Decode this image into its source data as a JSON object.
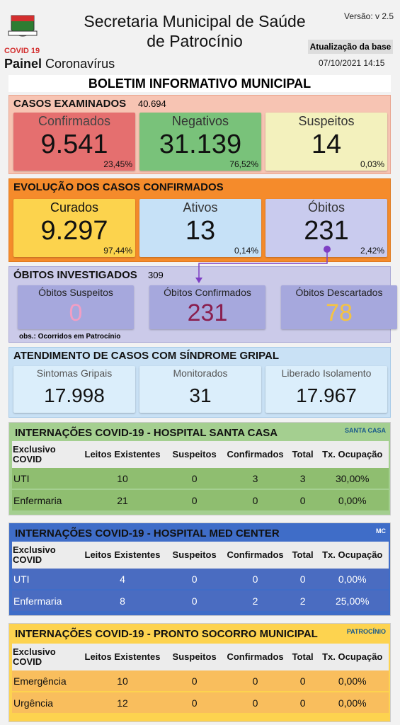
{
  "header": {
    "logo_label": "COVID 19",
    "brand_bold": "Painel",
    "brand": "Coronavírus",
    "title": "Secretaria Municipal de Saúde de Patrocínio",
    "version": "Versão: v 2.5",
    "update_label": "Atualização da base",
    "update_date": "07/10/2021 14:15"
  },
  "banner": "BOLETIM INFORMATIVO MUNICIPAL",
  "sections": [
    {
      "title": "CASOS EXAMINADOS",
      "total": "40.694",
      "cards": [
        {
          "label": "Confirmados",
          "value": "9.541",
          "pct": "23,45%"
        },
        {
          "label": "Negativos",
          "value": "31.139",
          "pct": "76,52%"
        },
        {
          "label": "Suspeitos",
          "value": "14",
          "pct": "0,03%"
        }
      ]
    },
    {
      "title": "EVOLUÇÃO DOS CASOS CONFIRMADOS",
      "cards": [
        {
          "label": "Curados",
          "value": "9.297",
          "pct": "97,44%"
        },
        {
          "label": "Ativos",
          "value": "13",
          "pct": "0,14%"
        },
        {
          "label": "Óbitos",
          "value": "231",
          "pct": "2,42%"
        }
      ]
    },
    {
      "title": "ÓBITOS INVESTIGADOS",
      "total": "309",
      "note": "obs.: Ocorridos em Patrocínio",
      "cards": [
        {
          "label": "Óbitos Suspeitos",
          "value": "0"
        },
        {
          "label": "Óbitos Confirmados",
          "value": "231"
        },
        {
          "label": "Óbitos Descartados",
          "value": "78"
        }
      ]
    },
    {
      "title": "ATENDIMENTO DE CASOS COM SÍNDROME GRIPAL",
      "cards": [
        {
          "label": "Sintomas Gripais",
          "value": "17.998"
        },
        {
          "label": "Monitorados",
          "value": "31"
        },
        {
          "label": "Liberado Isolamento",
          "value": "17.967"
        }
      ]
    }
  ],
  "tables": [
    {
      "title": "INTERNAÇÕES COVID-19 - HOSPITAL SANTA CASA",
      "logo": "SANTA CASA",
      "columns": [
        "Exclusivo COVID",
        "Leitos Existentes",
        "Suspeitos",
        "Confirmados",
        "Total",
        "Tx. Ocupação"
      ],
      "rows": [
        [
          "UTI",
          "10",
          "0",
          "3",
          "3",
          "30,00%"
        ],
        [
          "Enfermaria",
          "21",
          "0",
          "0",
          "0",
          "0,00%"
        ]
      ]
    },
    {
      "title": "INTERNAÇÕES COVID-19 - HOSPITAL MED CENTER",
      "logo": "MC",
      "columns": [
        "Exclusivo COVID",
        "Leitos Existentes",
        "Suspeitos",
        "Confirmados",
        "Total",
        "Tx. Ocupação"
      ],
      "rows": [
        [
          "UTI",
          "4",
          "0",
          "0",
          "0",
          "0,00%"
        ],
        [
          "Enfermaria",
          "8",
          "0",
          "2",
          "2",
          "25,00%"
        ]
      ]
    },
    {
      "title": "INTERNAÇÕES COVID-19 - PRONTO SOCORRO MUNICIPAL",
      "logo": "PATROCÍNIO",
      "columns": [
        "Exclusivo COVID",
        "Leitos Existentes",
        "Suspeitos",
        "Confirmados",
        "Total",
        "Tx. Ocupação"
      ],
      "rows": [
        [
          "Emergência",
          "10",
          "0",
          "0",
          "0",
          "0,00%"
        ],
        [
          "Urgência",
          "12",
          "0",
          "0",
          "0",
          "0,00%"
        ]
      ]
    }
  ]
}
